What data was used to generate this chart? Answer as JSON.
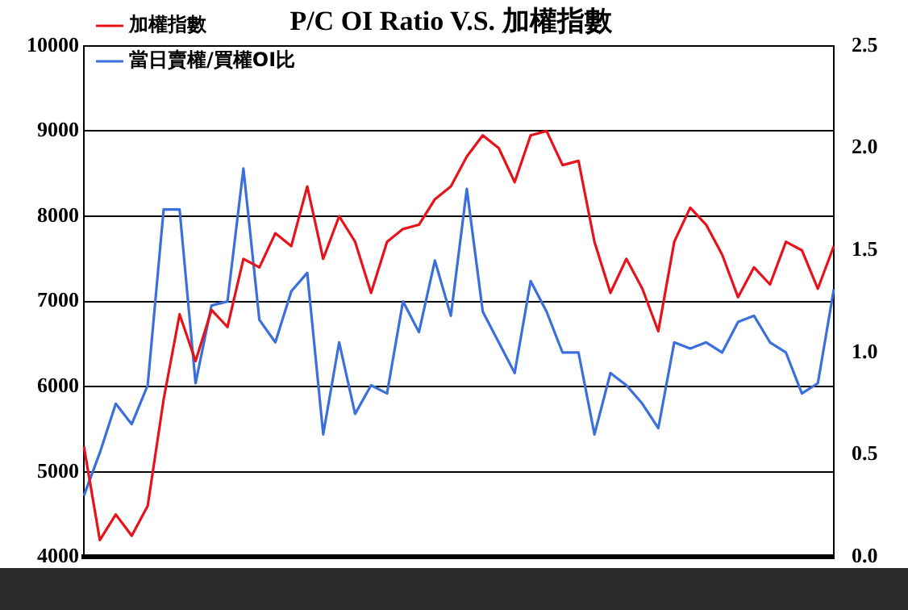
{
  "chart_data": {
    "type": "line",
    "title": "P/C OI Ratio V.S. 加權指數",
    "categories": [
      null,
      null,
      null,
      null,
      null,
      null,
      null,
      null,
      null,
      null,
      null,
      null,
      null,
      null,
      null,
      null,
      null,
      null,
      null,
      null,
      null,
      null,
      null,
      null,
      null,
      null,
      null,
      null,
      null,
      null,
      null,
      null,
      null,
      null,
      null,
      null,
      null,
      null,
      null,
      null,
      null,
      null,
      null,
      null,
      null,
      null,
      null,
      null
    ],
    "series": [
      {
        "name": "加權指數",
        "color": "#e8121a",
        "values": [
          5300,
          4200,
          4500,
          4250,
          4600,
          5850,
          6850,
          6300,
          6900,
          6700,
          7500,
          7400,
          7800,
          7650,
          8350,
          7500,
          8000,
          7700,
          7100,
          7700,
          7850,
          7900,
          8200,
          8350,
          8700,
          8950,
          8800,
          8400,
          8950,
          9000,
          8600,
          8650,
          7700,
          7100,
          7500,
          7150,
          6650,
          7700,
          8100,
          7900,
          7550,
          7050,
          7400,
          7200,
          7700,
          7600,
          7150,
          7650
        ]
      },
      {
        "name": "當日賣權/買權OI比",
        "color": "#3a6fdc",
        "axis": "y2",
        "values": [
          0.3,
          0.51,
          0.75,
          0.65,
          0.84,
          1.7,
          1.7,
          0.85,
          1.23,
          1.25,
          1.9,
          1.16,
          1.05,
          1.3,
          1.39,
          0.6,
          1.05,
          0.7,
          0.84,
          0.8,
          1.25,
          1.1,
          1.45,
          1.18,
          1.8,
          1.2,
          1.05,
          0.9,
          1.35,
          1.2,
          1.0,
          1.0,
          0.6,
          0.9,
          0.84,
          0.75,
          0.63,
          1.05,
          1.02,
          1.05,
          1.0,
          1.15,
          1.18,
          1.05,
          1.0,
          0.8,
          0.85,
          1.31
        ]
      }
    ],
    "ylim": [
      4000,
      10000
    ],
    "yticks": [
      4000,
      5000,
      6000,
      7000,
      8000,
      9000,
      10000
    ],
    "y2lim": [
      0,
      2.5
    ],
    "y2ticks": [
      {
        "value": 0,
        "label": "0.0"
      },
      {
        "value": 0.5,
        "label": "0.5"
      },
      {
        "value": 1,
        "label": "1.0"
      },
      {
        "value": 1.5,
        "label": "1.5"
      },
      {
        "value": 2,
        "label": "2.0"
      },
      {
        "value": 2.5,
        "label": "2.5"
      }
    ],
    "grid": "y",
    "legend": "top left",
    "marker": "none",
    "line_style": "solid",
    "tick_labels": "y"
  }
}
